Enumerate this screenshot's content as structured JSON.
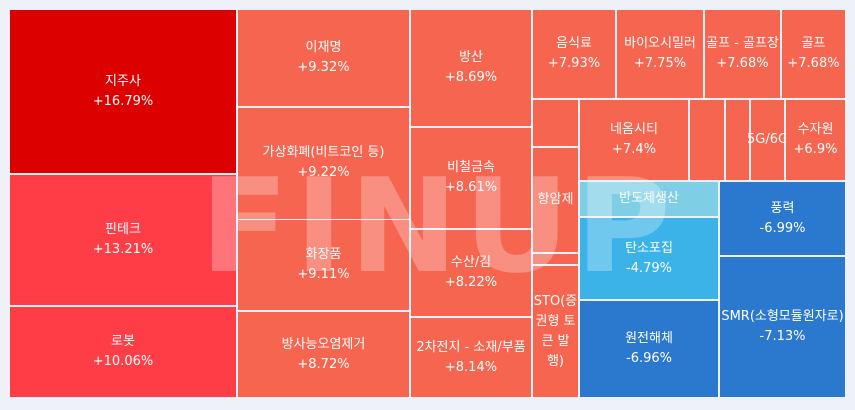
{
  "watermark": "FINUP",
  "colors": {
    "deep_red": "#dc0000",
    "red": "#ff3d47",
    "salmon": "#f5654f",
    "light_blue": "#7ecfe6",
    "sky_blue": "#3bb3e8",
    "blue": "#2b78cf"
  },
  "chart_data": {
    "type": "treemap",
    "unit": "%",
    "items": [
      {
        "name": "지주사",
        "value": 16.79,
        "label": "+16.79%"
      },
      {
        "name": "핀테크",
        "value": 13.21,
        "label": "+13.21%"
      },
      {
        "name": "로봇",
        "value": 10.06,
        "label": "+10.06%"
      },
      {
        "name": "이재명",
        "value": 9.32,
        "label": "+9.32%"
      },
      {
        "name": "가상화폐(비트코인 등)",
        "value": 9.22,
        "label": "+9.22%"
      },
      {
        "name": "화장품",
        "value": 9.11,
        "label": "+9.11%"
      },
      {
        "name": "방사능오염제거",
        "value": 8.72,
        "label": "+8.72%"
      },
      {
        "name": "방산",
        "value": 8.69,
        "label": "+8.69%"
      },
      {
        "name": "비철금속",
        "value": 8.61,
        "label": "+8.61%"
      },
      {
        "name": "수산/김",
        "value": 8.22,
        "label": "+8.22%"
      },
      {
        "name": "2차전지 - 소재/부품",
        "value": 8.14,
        "label": "+8.14%"
      },
      {
        "name": "음식료",
        "value": 7.93,
        "label": "+7.93%"
      },
      {
        "name": "바이오시밀러",
        "value": 7.75,
        "label": "+7.75%"
      },
      {
        "name": "골프 - 골프장",
        "value": 7.68,
        "label": "+7.68%"
      },
      {
        "name": "골프",
        "value": 7.68,
        "label": "+7.68%"
      },
      {
        "name": "네옴시티",
        "value": 7.4,
        "label": "+7.4%"
      },
      {
        "name": "5G/6G",
        "value": null,
        "label": ""
      },
      {
        "name": "수자원",
        "value": 6.9,
        "label": "+6.9%"
      },
      {
        "name": "항암제",
        "value": null,
        "label": ""
      },
      {
        "name": "STO(증권형 토큰 발행)",
        "value": null,
        "label": ""
      },
      {
        "name": "반도체생산",
        "value": null,
        "label": ""
      },
      {
        "name": "탄소포집",
        "value": -4.79,
        "label": "-4.79%"
      },
      {
        "name": "원전해체",
        "value": -6.96,
        "label": "-6.96%"
      },
      {
        "name": "풍력",
        "value": -6.99,
        "label": "-6.99%"
      },
      {
        "name": "SMR(소형모듈원자로)",
        "value": -7.13,
        "label": "-7.13%"
      }
    ]
  }
}
